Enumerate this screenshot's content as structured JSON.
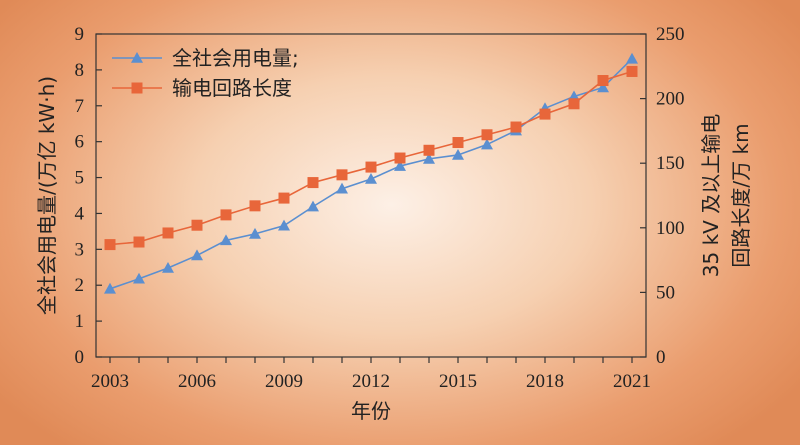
{
  "chart_data": {
    "type": "line",
    "x": [
      2003,
      2004,
      2005,
      2006,
      2007,
      2008,
      2009,
      2010,
      2011,
      2012,
      2013,
      2014,
      2015,
      2016,
      2017,
      2018,
      2019,
      2020,
      2021
    ],
    "xticks": [
      "2003",
      "2006",
      "2009",
      "2012",
      "2015",
      "2018",
      "2021"
    ],
    "xlabel": "年份",
    "ylabel_left": "全社会用电量/(万亿 kW·h)",
    "ylabel_right_line1": "35 kV 及以上输电",
    "ylabel_right_line2": "回路长度/万 km",
    "ylim_left": [
      0,
      9
    ],
    "yticks_left": [
      "0",
      "1",
      "2",
      "3",
      "4",
      "5",
      "6",
      "7",
      "8",
      "9"
    ],
    "ylim_right": [
      0,
      250
    ],
    "yticks_right": [
      "0",
      "50",
      "100",
      "150",
      "200",
      "250"
    ],
    "legend_position": "top-left",
    "grid": false,
    "series": [
      {
        "name": "全社会用电量;",
        "axis": "left",
        "marker": "triangle",
        "color": "#5b8fd0",
        "values": [
          1.9,
          2.18,
          2.48,
          2.83,
          3.25,
          3.43,
          3.66,
          4.19,
          4.69,
          4.96,
          5.32,
          5.52,
          5.63,
          5.92,
          6.31,
          6.93,
          7.26,
          7.51,
          8.31
        ]
      },
      {
        "name": "输电回路长度",
        "axis": "right",
        "marker": "square",
        "color": "#e8663a",
        "values": [
          87,
          89,
          96,
          102,
          110,
          117,
          123,
          135,
          141,
          147,
          154,
          160,
          166,
          172,
          178,
          188,
          196,
          214,
          221
        ]
      }
    ]
  }
}
